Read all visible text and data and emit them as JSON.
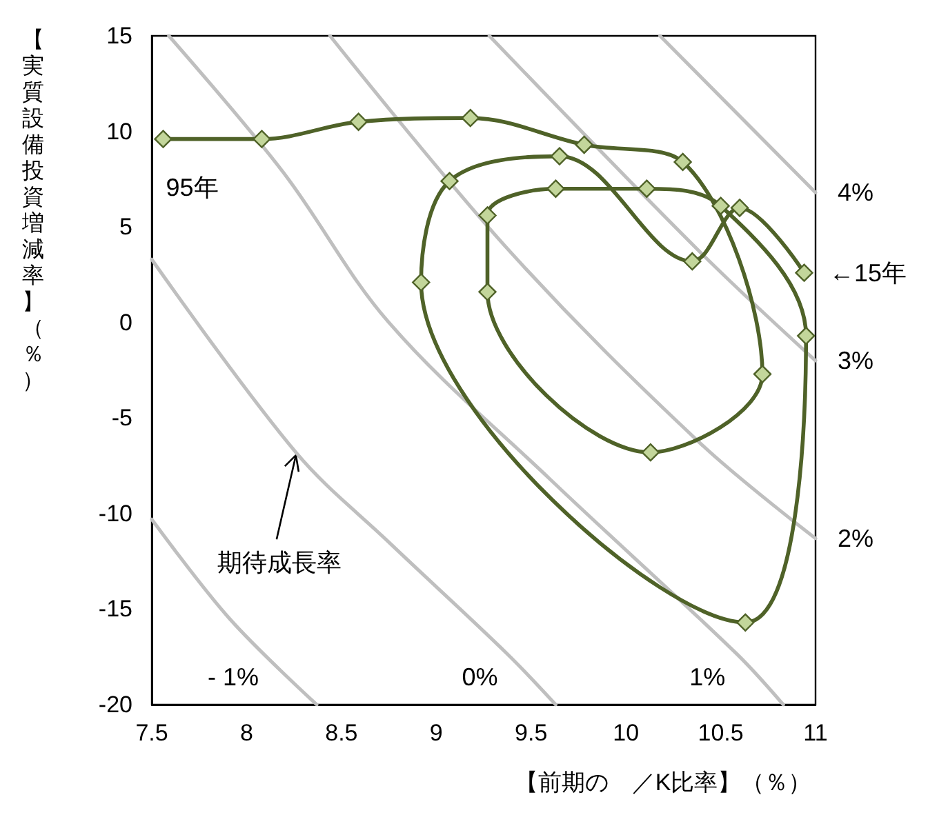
{
  "chart_data": {
    "type": "line",
    "xlabel": "【前期の　／K比率】（％）",
    "ylabel": "【実質設備投資増減率】（％）",
    "xlim": [
      7.5,
      11
    ],
    "ylim": [
      -20,
      15
    ],
    "xticks": [
      7.5,
      8,
      8.5,
      9,
      9.5,
      10,
      10.5,
      11
    ],
    "yticks": [
      -20,
      -15,
      -10,
      -5,
      0,
      5,
      10,
      15
    ],
    "grid": false,
    "legend": false,
    "marker": "diamond",
    "line_style": "solid",
    "series": [
      {
        "name": "- 1%",
        "color": "#bfbfbf",
        "marker": "none",
        "x": [
          7.5,
          7.91,
          8.37
        ],
        "values": [
          -10.3,
          -15.5,
          -20
        ]
      },
      {
        "name": "0%",
        "color": "#bfbfbf",
        "marker": "none",
        "x": [
          7.5,
          8.26,
          8.75,
          9.37,
          9.63
        ],
        "values": [
          3.3,
          -6.8,
          -11.5,
          -17.3,
          -20
        ]
      },
      {
        "name": "1%",
        "color": "#bfbfbf",
        "marker": "none",
        "x": [
          7.59,
          8.19,
          8.75,
          9.6,
          10.58,
          10.83
        ],
        "values": [
          15,
          7.9,
          0,
          -8.2,
          -17.3,
          -20
        ]
      },
      {
        "name": "2%",
        "color": "#bfbfbf",
        "marker": "none",
        "x": [
          8.44,
          9.39,
          10.39,
          11
        ],
        "values": [
          15,
          3.7,
          -6.3,
          -11.3
        ]
      },
      {
        "name": "3%",
        "color": "#bfbfbf",
        "marker": "none",
        "x": [
          9.28,
          10.39,
          11
        ],
        "values": [
          15,
          3.7,
          -2
        ]
      },
      {
        "name": "4%",
        "color": "#bfbfbf",
        "marker": "none",
        "x": [
          10.18,
          11
        ],
        "values": [
          15,
          6.8
        ]
      },
      {
        "color": "#4f6228",
        "x": [
          7.56,
          8.08,
          8.59,
          9.18,
          9.78,
          10.3,
          10.72,
          10.13,
          9.27,
          9.27,
          9.63,
          10.11,
          10.5,
          10.95,
          10.63,
          8.92,
          9.07,
          9.65,
          10.35,
          10.6,
          10.94
        ],
        "values": [
          9.6,
          9.6,
          10.5,
          10.7,
          9.3,
          8.4,
          -2.7,
          -6.8,
          1.6,
          5.6,
          7,
          7,
          6.1,
          -0.7,
          -15.7,
          2.1,
          7.4,
          8.7,
          3.2,
          6,
          2.6
        ]
      }
    ],
    "annotations": [
      {
        "text": "95年",
        "x": 7.56,
        "y": 9.6
      },
      {
        "text": "←15年",
        "x": 10.94,
        "y": 2.6
      },
      {
        "text": "期待成長率",
        "x": 8.26,
        "y": -6.8
      }
    ]
  }
}
